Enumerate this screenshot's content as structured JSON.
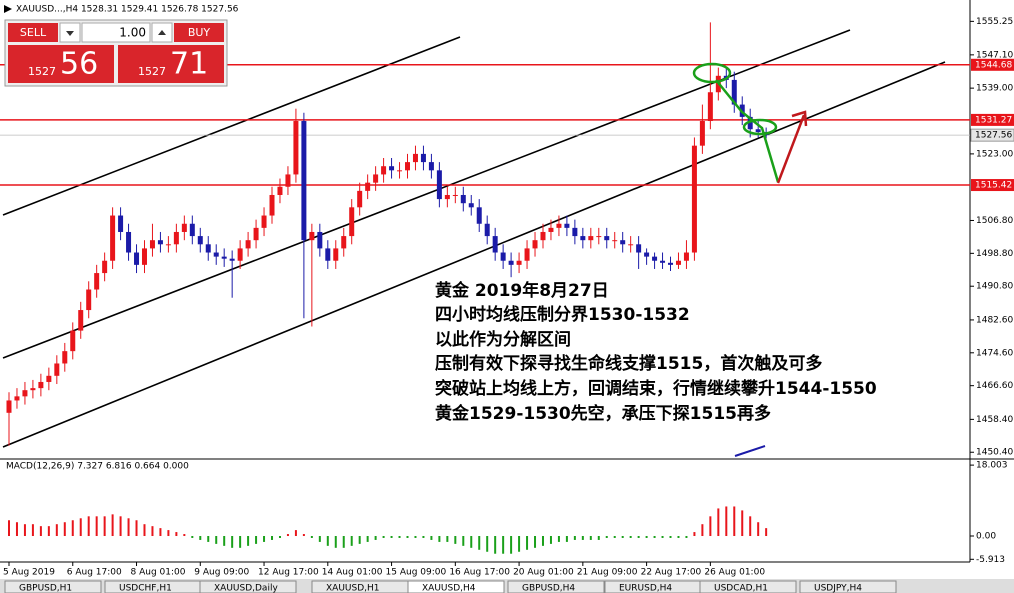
{
  "toolbar": {
    "symbol_info": "XAUUSD...,H4  1528.31 1529.41 1526.78 1527.56",
    "sell": "SELL",
    "buy": "BUY",
    "lot": "1.00",
    "bid_small": "1527",
    "bid_big": "56",
    "ask_small": "1527",
    "ask_big": "71"
  },
  "annotation": {
    "lines": [
      "黄金 2019年8月27日",
      "四小时均线压制分界1530-1532",
      "以此作为分解区间",
      "压制有效下探寻找生命线支撑1515，首次触及可多",
      "突破站上均线上方，回调结束，行情继续攀升1544-1550",
      "黄金1529-1530先空，承压下探1515再多"
    ]
  },
  "tabs": [
    "GBPUSD,H1",
    "USDCHF,H1",
    "XAUUSD,Daily",
    "XAUUSD,H1",
    "XAUUSD,H4",
    "GBPUSD,H4",
    "EURUSD,H4",
    "USDCAD,H1",
    "USDJPY,H4"
  ],
  "chart_data": [
    {
      "type": "candlestick",
      "categories": [
        "5 Aug 2019",
        null,
        null,
        null,
        null,
        null,
        null,
        null,
        "6 Aug 17:00",
        null,
        null,
        null,
        null,
        null,
        null,
        null,
        "8 Aug 01:00",
        null,
        null,
        null,
        null,
        null,
        null,
        null,
        "9 Aug 09:00",
        null,
        null,
        null,
        null,
        null,
        null,
        null,
        "12 Aug 17:00",
        null,
        null,
        null,
        null,
        null,
        null,
        null,
        "14 Aug 01:00",
        null,
        null,
        null,
        null,
        null,
        null,
        null,
        "15 Aug 09:00",
        null,
        null,
        null,
        null,
        null,
        null,
        null,
        "16 Aug 17:00",
        null,
        null,
        null,
        null,
        null,
        null,
        null,
        "20 Aug 01:00",
        null,
        null,
        null,
        null,
        null,
        null,
        null,
        "21 Aug 09:00",
        null,
        null,
        null,
        null,
        null,
        null,
        null,
        "22 Aug 17:00",
        null,
        null,
        null,
        null,
        null,
        null,
        null,
        "26 Aug 01:00",
        null,
        null,
        null,
        null,
        null,
        null,
        null
      ],
      "open": [
        1460,
        1463,
        1464,
        1465.5,
        1466,
        1467.5,
        1469,
        1472,
        1475,
        1480,
        1485,
        1490,
        1494,
        1497,
        1508,
        1504,
        1499,
        1496,
        1500,
        1502,
        1501,
        1501,
        1504,
        1506,
        1503,
        1501,
        1499,
        1498,
        1497.5,
        1497,
        1500,
        1502,
        1505,
        1508,
        1513,
        1515,
        1518,
        1531,
        1502,
        1504,
        1500,
        1497,
        1500,
        1503,
        1510,
        1514,
        1516,
        1518,
        1520,
        1519,
        1519,
        1521,
        1523,
        1521,
        1519,
        1512,
        1513,
        1513,
        1511,
        1510,
        1506,
        1503,
        1499,
        1497,
        1496,
        1497,
        1500,
        1502,
        1504,
        1505,
        1506,
        1505,
        1503,
        1502,
        1503,
        1503,
        1502,
        1502,
        1501,
        1501,
        1499,
        1498,
        1497,
        1496.5,
        1496,
        1497,
        1499,
        1525,
        1531,
        1538,
        1542,
        1541,
        1535,
        1532,
        1529,
        1528.31
      ],
      "high": [
        1465,
        1466,
        1467.5,
        1468,
        1469.5,
        1471,
        1474,
        1477,
        1482,
        1487,
        1492,
        1496,
        1499,
        1510,
        1510,
        1506,
        1501,
        1502,
        1506,
        1504,
        1503,
        1506,
        1508,
        1508,
        1505,
        1503,
        1501,
        1500,
        1499.5,
        1502,
        1504,
        1507,
        1510,
        1515,
        1517,
        1520,
        1534,
        1533,
        1506,
        1506,
        1502,
        1502,
        1505,
        1512,
        1516,
        1518,
        1520,
        1522,
        1522,
        1521,
        1523,
        1525,
        1525,
        1523,
        1521,
        1515,
        1515,
        1515,
        1513,
        1512,
        1508,
        1505,
        1501,
        1499,
        1499,
        1502,
        1504,
        1506,
        1507,
        1508,
        1508,
        1507,
        1505,
        1505,
        1505,
        1505,
        1504,
        1504,
        1503,
        1503,
        1500,
        1499,
        1499,
        1498,
        1499,
        1502,
        1527,
        1535,
        1555,
        1544,
        1544,
        1543,
        1537,
        1534,
        1531,
        1529.41
      ],
      "low": [
        1452,
        1461,
        1462,
        1463.5,
        1464,
        1465.5,
        1467,
        1470,
        1473,
        1478,
        1483,
        1488,
        1492,
        1495,
        1502,
        1497,
        1494,
        1494,
        1498,
        1499,
        1499,
        1499,
        1502,
        1501,
        1499,
        1497,
        1496,
        1495.5,
        1488,
        1495,
        1498,
        1500,
        1503,
        1506,
        1511,
        1513,
        1516,
        1483,
        1481,
        1498,
        1495,
        1495,
        1498,
        1501,
        1508,
        1512,
        1514,
        1516,
        1517,
        1517,
        1517,
        1519,
        1519,
        1517,
        1510,
        1510,
        1511,
        1509,
        1508,
        1504,
        1501,
        1497,
        1495,
        1493,
        1494,
        1495,
        1498,
        1500,
        1502,
        1503,
        1503,
        1501,
        1500,
        1500,
        1501,
        1500,
        1500,
        1499,
        1499,
        1495,
        1496,
        1495,
        1495,
        1494.5,
        1495,
        1495,
        1497,
        1523,
        1529,
        1536,
        1539,
        1533,
        1530,
        1527,
        1527,
        1526.78
      ],
      "close": [
        1463,
        1464,
        1465.5,
        1466,
        1467.5,
        1469,
        1472,
        1475,
        1480,
        1485,
        1490,
        1494,
        1497,
        1508,
        1504,
        1499,
        1496,
        1500,
        1502,
        1501,
        1501,
        1504,
        1506,
        1503,
        1501,
        1499,
        1498,
        1497.5,
        1497,
        1500,
        1502,
        1505,
        1508,
        1513,
        1515,
        1518,
        1531,
        1502,
        1504,
        1500,
        1497,
        1500,
        1503,
        1510,
        1514,
        1516,
        1518,
        1520,
        1519,
        1519,
        1521,
        1523,
        1521,
        1519,
        1512,
        1513,
        1513,
        1511,
        1510,
        1506,
        1503,
        1499,
        1497,
        1496,
        1497,
        1500,
        1502,
        1504,
        1505,
        1506,
        1505,
        1503,
        1502,
        1503,
        1503,
        1502,
        1502,
        1501,
        1501,
        1499,
        1498,
        1497,
        1496.5,
        1496,
        1497,
        1499,
        1525,
        1531,
        1538,
        1542,
        1541,
        1535,
        1532,
        1529,
        1528.31,
        1527.56
      ],
      "up_color": "#e8151b",
      "down_color": "#1b1ba8",
      "ylim": [
        1449,
        1558.5
      ],
      "yticks": [
        1555.25,
        {
          "value": 1547.1,
          "label": "1547.10"
        },
        {
          "value": 1539,
          "label": "1539.00"
        },
        {
          "value": 1523,
          "label": "1523.00"
        },
        {
          "value": 1506.8,
          "label": "1506.80"
        },
        {
          "value": 1498.8,
          "label": "1498.80"
        },
        {
          "value": 1490.8,
          "label": "1490.80"
        },
        {
          "value": 1482.6,
          "label": "1482.60"
        },
        {
          "value": 1474.6,
          "label": "1474.60"
        },
        {
          "value": 1466.6,
          "label": "1466.60"
        },
        {
          "value": 1458.4,
          "label": "1458.40"
        },
        {
          "value": 1450.4,
          "label": "1450.40"
        }
      ],
      "levels": [
        1544.68,
        1531.27,
        1515.42
      ],
      "level_color": "#e8151b",
      "current_price": 1527.56
    },
    {
      "type": "bar",
      "title": "MACD(12,26,9) 7.327 6.816 0.664 0.000",
      "values": [
        4,
        3.5,
        3,
        3,
        2.5,
        2.5,
        3,
        3.5,
        4,
        4.5,
        5,
        5,
        5,
        5.5,
        5,
        4.5,
        4,
        3,
        2.5,
        2,
        1.5,
        1,
        0.5,
        -0.5,
        -1,
        -1.5,
        -2,
        -2.5,
        -3,
        -3,
        -2.5,
        -2,
        -1.5,
        -1,
        -0.5,
        0.5,
        1.5,
        0.5,
        -0.5,
        -1.5,
        -2.5,
        -3,
        -3,
        -2.5,
        -2,
        -1.5,
        -1,
        -0.5,
        -0.5,
        -0.5,
        -0.5,
        -0.5,
        -0.5,
        -1,
        -1.5,
        -1.5,
        -2,
        -2.5,
        -3,
        -3.5,
        -4,
        -4.5,
        -4.5,
        -4.5,
        -4,
        -3.5,
        -3,
        -2.5,
        -2,
        -1.5,
        -1.5,
        -1,
        -1,
        -1,
        -1,
        -0.5,
        -0.5,
        -0.5,
        -0.5,
        -0.5,
        -0.5,
        -0.5,
        -0.5,
        -0.5,
        -0.5,
        -0.5,
        1,
        3,
        5,
        7,
        7.5,
        7.5,
        6.5,
        5,
        3.5,
        2
      ],
      "positive_color": "#e8151b",
      "negative_color": "#1aa01a",
      "ylim": [
        -6.6,
        19.3
      ],
      "yticks": [
        18.003,
        {
          "value": 0,
          "label": "0.00"
        },
        -5.913
      ]
    }
  ]
}
